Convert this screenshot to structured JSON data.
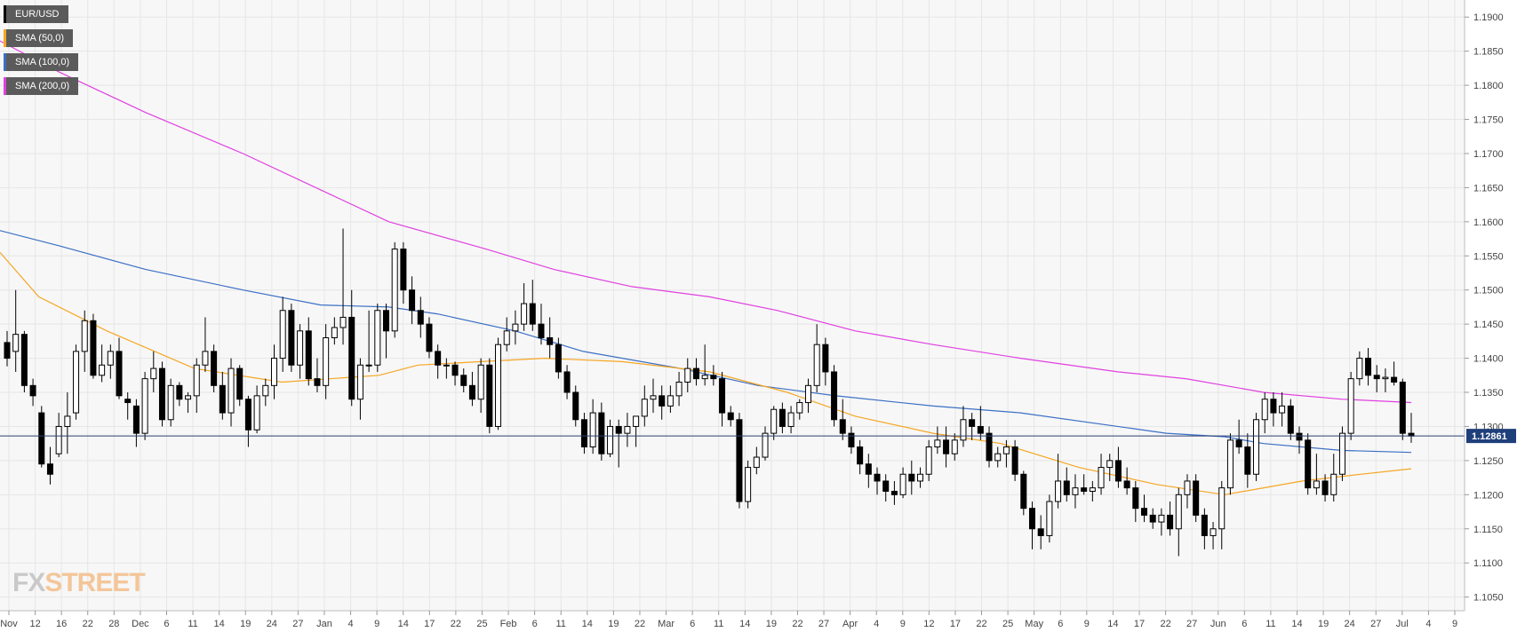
{
  "chart_data": {
    "type": "candlestick",
    "symbol": "EUR/USD",
    "last_price": "1.12861",
    "ylim": [
      1.103,
      1.1925
    ],
    "y_ticks": [
      "1.1900",
      "1.1850",
      "1.1800",
      "1.1750",
      "1.1700",
      "1.1650",
      "1.1600",
      "1.1550",
      "1.1500",
      "1.1450",
      "1.1400",
      "1.1350",
      "1.1300",
      "1.1250",
      "1.1200",
      "1.1150",
      "1.1100",
      "1.1050"
    ],
    "x_ticks": [
      "Nov",
      "12",
      "16",
      "22",
      "28",
      "Dec",
      "6",
      "11",
      "14",
      "19",
      "24",
      "27",
      "Jan",
      "4",
      "9",
      "14",
      "17",
      "22",
      "25",
      "Feb",
      "6",
      "11",
      "14",
      "19",
      "22",
      "Mar",
      "6",
      "11",
      "14",
      "19",
      "22",
      "27",
      "Apr",
      "4",
      "9",
      "12",
      "17",
      "22",
      "25",
      "May",
      "6",
      "9",
      "14",
      "17",
      "22",
      "27",
      "Jun",
      "6",
      "11",
      "14",
      "19",
      "24",
      "27",
      "Jul",
      "4",
      "9"
    ],
    "grid": true,
    "legend": [
      {
        "name": "EUR/USD",
        "color": "#000000"
      },
      {
        "name": "SMA (50,0)",
        "color": "#f5a623"
      },
      {
        "name": "SMA (100,0)",
        "color": "#3b6fc4"
      },
      {
        "name": "SMA (200,0)",
        "color": "#e040e0"
      }
    ],
    "candles": [
      [
        1.1423,
        1.144,
        1.1388,
        1.14
      ],
      [
        1.141,
        1.15,
        1.138,
        1.1435
      ],
      [
        1.1435,
        1.144,
        1.135,
        1.136
      ],
      [
        1.136,
        1.137,
        1.133,
        1.1345
      ],
      [
        1.132,
        1.133,
        1.124,
        1.1245
      ],
      [
        1.1245,
        1.127,
        1.1215,
        1.123
      ],
      [
        1.126,
        1.132,
        1.1255,
        1.13
      ],
      [
        1.13,
        1.135,
        1.126,
        1.1315
      ],
      [
        1.132,
        1.142,
        1.131,
        1.141
      ],
      [
        1.141,
        1.147,
        1.138,
        1.1455
      ],
      [
        1.1455,
        1.1465,
        1.137,
        1.1375
      ],
      [
        1.1375,
        1.142,
        1.1365,
        1.139
      ],
      [
        1.139,
        1.142,
        1.137,
        1.141
      ],
      [
        1.141,
        1.143,
        1.134,
        1.1345
      ],
      [
        1.134,
        1.135,
        1.131,
        1.1335
      ],
      [
        1.133,
        1.134,
        1.127,
        1.129
      ],
      [
        1.129,
        1.138,
        1.128,
        1.137
      ],
      [
        1.137,
        1.141,
        1.135,
        1.1385
      ],
      [
        1.1385,
        1.1395,
        1.13,
        1.131
      ],
      [
        1.131,
        1.137,
        1.13,
        1.136
      ],
      [
        1.136,
        1.1365,
        1.133,
        1.134
      ],
      [
        1.134,
        1.135,
        1.132,
        1.1345
      ],
      [
        1.1345,
        1.14,
        1.132,
        1.139
      ],
      [
        1.139,
        1.146,
        1.138,
        1.141
      ],
      [
        1.141,
        1.142,
        1.135,
        1.136
      ],
      [
        1.136,
        1.138,
        1.131,
        1.132
      ],
      [
        1.132,
        1.14,
        1.13,
        1.1385
      ],
      [
        1.1385,
        1.139,
        1.133,
        1.134
      ],
      [
        1.134,
        1.1345,
        1.127,
        1.1295
      ],
      [
        1.1295,
        1.136,
        1.129,
        1.1345
      ],
      [
        1.1345,
        1.137,
        1.133,
        1.136
      ],
      [
        1.136,
        1.142,
        1.134,
        1.14
      ],
      [
        1.14,
        1.149,
        1.138,
        1.147
      ],
      [
        1.147,
        1.148,
        1.138,
        1.139
      ],
      [
        1.139,
        1.145,
        1.137,
        1.144
      ],
      [
        1.144,
        1.146,
        1.136,
        1.137
      ],
      [
        1.137,
        1.14,
        1.135,
        1.136
      ],
      [
        1.136,
        1.145,
        1.134,
        1.143
      ],
      [
        1.143,
        1.146,
        1.142,
        1.1445
      ],
      [
        1.1445,
        1.159,
        1.142,
        1.146
      ],
      [
        1.146,
        1.15,
        1.133,
        1.134
      ],
      [
        1.134,
        1.14,
        1.131,
        1.139
      ],
      [
        1.139,
        1.147,
        1.138,
        1.139
      ],
      [
        1.139,
        1.148,
        1.138,
        1.147
      ],
      [
        1.147,
        1.148,
        1.14,
        1.144
      ],
      [
        1.144,
        1.157,
        1.143,
        1.156
      ],
      [
        1.156,
        1.157,
        1.148,
        1.15
      ],
      [
        1.15,
        1.152,
        1.145,
        1.147
      ],
      [
        1.147,
        1.149,
        1.143,
        1.145
      ],
      [
        1.145,
        1.146,
        1.14,
        1.141
      ],
      [
        1.141,
        1.142,
        1.137,
        1.139
      ],
      [
        1.139,
        1.14,
        1.137,
        1.139
      ],
      [
        1.139,
        1.1395,
        1.136,
        1.1375
      ],
      [
        1.1375,
        1.1385,
        1.135,
        1.136
      ],
      [
        1.136,
        1.138,
        1.133,
        1.134
      ],
      [
        1.134,
        1.14,
        1.132,
        1.139
      ],
      [
        1.139,
        1.14,
        1.129,
        1.13
      ],
      [
        1.13,
        1.143,
        1.1295,
        1.142
      ],
      [
        1.142,
        1.146,
        1.141,
        1.144
      ],
      [
        1.144,
        1.147,
        1.142,
        1.145
      ],
      [
        1.145,
        1.151,
        1.144,
        1.148
      ],
      [
        1.148,
        1.1515,
        1.144,
        1.145
      ],
      [
        1.145,
        1.148,
        1.142,
        1.143
      ],
      [
        1.143,
        1.146,
        1.14,
        1.142
      ],
      [
        1.142,
        1.143,
        1.137,
        1.138
      ],
      [
        1.138,
        1.139,
        1.134,
        1.135
      ],
      [
        1.135,
        1.136,
        1.13,
        1.131
      ],
      [
        1.131,
        1.132,
        1.126,
        1.127
      ],
      [
        1.127,
        1.134,
        1.126,
        1.132
      ],
      [
        1.132,
        1.1335,
        1.125,
        1.126
      ],
      [
        1.126,
        1.131,
        1.1255,
        1.13
      ],
      [
        1.13,
        1.131,
        1.124,
        1.129
      ],
      [
        1.129,
        1.132,
        1.127,
        1.13
      ],
      [
        1.13,
        1.131,
        1.127,
        1.1315
      ],
      [
        1.1315,
        1.136,
        1.13,
        1.134
      ],
      [
        1.134,
        1.137,
        1.132,
        1.1345
      ],
      [
        1.1345,
        1.136,
        1.131,
        1.133
      ],
      [
        1.133,
        1.136,
        1.132,
        1.1345
      ],
      [
        1.1345,
        1.138,
        1.133,
        1.1365
      ],
      [
        1.1365,
        1.14,
        1.135,
        1.1385
      ],
      [
        1.1385,
        1.14,
        1.136,
        1.137
      ],
      [
        1.137,
        1.142,
        1.136,
        1.1375
      ],
      [
        1.1375,
        1.139,
        1.136,
        1.137
      ],
      [
        1.137,
        1.138,
        1.13,
        1.132
      ],
      [
        1.132,
        1.133,
        1.13,
        1.131
      ],
      [
        1.131,
        1.132,
        1.118,
        1.119
      ],
      [
        1.119,
        1.125,
        1.118,
        1.124
      ],
      [
        1.124,
        1.127,
        1.123,
        1.1255
      ],
      [
        1.1255,
        1.13,
        1.125,
        1.129
      ],
      [
        1.129,
        1.133,
        1.128,
        1.1325
      ],
      [
        1.1325,
        1.1335,
        1.129,
        1.13
      ],
      [
        1.13,
        1.133,
        1.129,
        1.132
      ],
      [
        1.132,
        1.134,
        1.131,
        1.1335
      ],
      [
        1.1335,
        1.137,
        1.132,
        1.136
      ],
      [
        1.136,
        1.145,
        1.135,
        1.142
      ],
      [
        1.142,
        1.143,
        1.136,
        1.138
      ],
      [
        1.138,
        1.139,
        1.13,
        1.131
      ],
      [
        1.131,
        1.134,
        1.128,
        1.129
      ],
      [
        1.129,
        1.13,
        1.126,
        1.127
      ],
      [
        1.127,
        1.128,
        1.123,
        1.1245
      ],
      [
        1.1245,
        1.126,
        1.121,
        1.123
      ],
      [
        1.123,
        1.124,
        1.12,
        1.122
      ],
      [
        1.122,
        1.123,
        1.119,
        1.1205
      ],
      [
        1.1205,
        1.122,
        1.1185,
        1.12
      ],
      [
        1.12,
        1.124,
        1.1195,
        1.123
      ],
      [
        1.123,
        1.125,
        1.12,
        1.122
      ],
      [
        1.122,
        1.124,
        1.121,
        1.123
      ],
      [
        1.123,
        1.128,
        1.122,
        1.127
      ],
      [
        1.127,
        1.13,
        1.126,
        1.128
      ],
      [
        1.128,
        1.13,
        1.124,
        1.126
      ],
      [
        1.126,
        1.129,
        1.125,
        1.128
      ],
      [
        1.128,
        1.133,
        1.127,
        1.131
      ],
      [
        1.131,
        1.132,
        1.128,
        1.13
      ],
      [
        1.13,
        1.133,
        1.128,
        1.129
      ],
      [
        1.129,
        1.13,
        1.124,
        1.125
      ],
      [
        1.125,
        1.127,
        1.124,
        1.126
      ],
      [
        1.126,
        1.128,
        1.124,
        1.127
      ],
      [
        1.127,
        1.128,
        1.122,
        1.123
      ],
      [
        1.123,
        1.1235,
        1.117,
        1.118
      ],
      [
        1.118,
        1.119,
        1.112,
        1.115
      ],
      [
        1.115,
        1.117,
        1.112,
        1.114
      ],
      [
        1.114,
        1.12,
        1.113,
        1.119
      ],
      [
        1.119,
        1.126,
        1.118,
        1.122
      ],
      [
        1.122,
        1.124,
        1.119,
        1.12
      ],
      [
        1.12,
        1.123,
        1.118,
        1.121
      ],
      [
        1.121,
        1.123,
        1.12,
        1.1205
      ],
      [
        1.1205,
        1.122,
        1.119,
        1.121
      ],
      [
        1.121,
        1.126,
        1.12,
        1.124
      ],
      [
        1.124,
        1.126,
        1.122,
        1.125
      ],
      [
        1.125,
        1.127,
        1.121,
        1.122
      ],
      [
        1.122,
        1.124,
        1.12,
        1.121
      ],
      [
        1.121,
        1.122,
        1.116,
        1.118
      ],
      [
        1.118,
        1.12,
        1.116,
        1.117
      ],
      [
        1.117,
        1.118,
        1.115,
        1.116
      ],
      [
        1.116,
        1.118,
        1.114,
        1.117
      ],
      [
        1.117,
        1.119,
        1.114,
        1.115
      ],
      [
        1.115,
        1.121,
        1.111,
        1.12
      ],
      [
        1.12,
        1.123,
        1.118,
        1.122
      ],
      [
        1.122,
        1.123,
        1.116,
        1.117
      ],
      [
        1.117,
        1.118,
        1.112,
        1.114
      ],
      [
        1.114,
        1.116,
        1.112,
        1.115
      ],
      [
        1.115,
        1.122,
        1.112,
        1.121
      ],
      [
        1.121,
        1.129,
        1.12,
        1.128
      ],
      [
        1.128,
        1.131,
        1.126,
        1.127
      ],
      [
        1.127,
        1.129,
        1.121,
        1.123
      ],
      [
        1.123,
        1.132,
        1.122,
        1.131
      ],
      [
        1.131,
        1.135,
        1.129,
        1.134
      ],
      [
        1.134,
        1.135,
        1.13,
        1.132
      ],
      [
        1.132,
        1.135,
        1.13,
        1.133
      ],
      [
        1.133,
        1.134,
        1.128,
        1.129
      ],
      [
        1.129,
        1.13,
        1.126,
        1.128
      ],
      [
        1.128,
        1.129,
        1.12,
        1.121
      ],
      [
        1.121,
        1.126,
        1.12,
        1.122
      ],
      [
        1.122,
        1.123,
        1.119,
        1.12
      ],
      [
        1.12,
        1.126,
        1.119,
        1.123
      ],
      [
        1.123,
        1.13,
        1.122,
        1.129
      ],
      [
        1.129,
        1.138,
        1.128,
        1.137
      ],
      [
        1.137,
        1.141,
        1.136,
        1.14
      ],
      [
        1.14,
        1.1415,
        1.136,
        1.1375
      ],
      [
        1.1375,
        1.139,
        1.135,
        1.137
      ],
      [
        1.137,
        1.1385,
        1.135,
        1.1372
      ],
      [
        1.1372,
        1.1395,
        1.136,
        1.1365
      ],
      [
        1.1365,
        1.137,
        1.128,
        1.129
      ],
      [
        1.129,
        1.132,
        1.1276,
        1.1286
      ]
    ],
    "sma50": [
      [
        1.1555,
        0
      ],
      [
        1.149,
        40
      ],
      [
        1.144,
        110
      ],
      [
        1.1385,
        200
      ],
      [
        1.1365,
        290
      ],
      [
        1.1375,
        390
      ],
      [
        1.139,
        430
      ],
      [
        1.1395,
        495
      ],
      [
        1.14,
        560
      ],
      [
        1.1395,
        640
      ],
      [
        1.138,
        730
      ],
      [
        1.135,
        810
      ],
      [
        1.1315,
        880
      ],
      [
        1.129,
        960
      ],
      [
        1.1275,
        1030
      ],
      [
        1.124,
        1110
      ],
      [
        1.1215,
        1190
      ],
      [
        1.12,
        1260
      ],
      [
        1.121,
        1300
      ],
      [
        1.122,
        1340
      ],
      [
        1.123,
        1400
      ],
      [
        1.1238,
        1452
      ]
    ],
    "sma100": [
      [
        1.1587,
        0
      ],
      [
        1.1565,
        60
      ],
      [
        1.153,
        150
      ],
      [
        1.15,
        250
      ],
      [
        1.1478,
        330
      ],
      [
        1.1475,
        400
      ],
      [
        1.1465,
        450
      ],
      [
        1.144,
        530
      ],
      [
        1.141,
        600
      ],
      [
        1.1385,
        700
      ],
      [
        1.136,
        780
      ],
      [
        1.1345,
        860
      ],
      [
        1.133,
        960
      ],
      [
        1.132,
        1050
      ],
      [
        1.129,
        1200
      ],
      [
        1.1285,
        1260
      ],
      [
        1.1275,
        1300
      ],
      [
        1.1265,
        1380
      ],
      [
        1.1262,
        1452
      ]
    ],
    "sma200": [
      [
        1.1865,
        0
      ],
      [
        1.182,
        60
      ],
      [
        1.176,
        150
      ],
      [
        1.17,
        250
      ],
      [
        1.164,
        340
      ],
      [
        1.16,
        400
      ],
      [
        1.156,
        500
      ],
      [
        1.153,
        570
      ],
      [
        1.1505,
        650
      ],
      [
        1.149,
        730
      ],
      [
        1.147,
        800
      ],
      [
        1.144,
        880
      ],
      [
        1.142,
        960
      ],
      [
        1.14,
        1050
      ],
      [
        1.138,
        1150
      ],
      [
        1.137,
        1220
      ],
      [
        1.135,
        1300
      ],
      [
        1.134,
        1380
      ],
      [
        1.1335,
        1452
      ]
    ]
  }
}
